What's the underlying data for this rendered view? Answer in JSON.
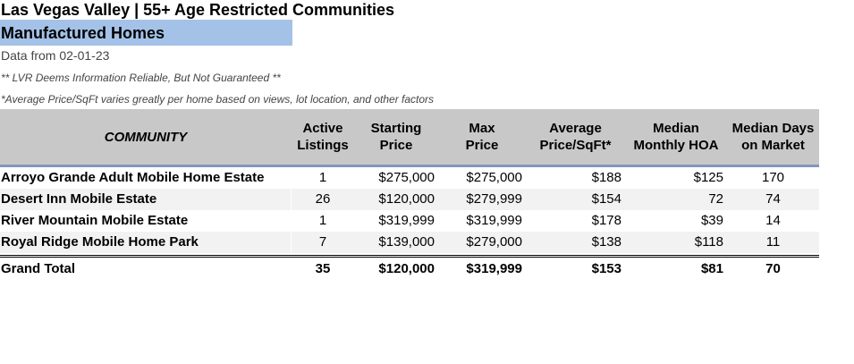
{
  "title": "Las Vegas Valley | 55+ Age Restricted Communities",
  "subtitle": "Manufactured Homes",
  "date_line": "Data from 02-01-23",
  "note1": "** LVR Deems Information Reliable, But Not Guaranteed **",
  "note2": "*Average Price/SqFt varies greatly per home based on views, lot location, and other factors",
  "colors": {
    "header_bg": "#c8c8c8",
    "subtitle_bg": "#a4c2e8",
    "header_rule": "#8297c0",
    "alt_row": "#f2f2f2"
  },
  "table": {
    "headers": {
      "community": "COMMUNITY",
      "active_1": "Active",
      "active_2": "Listings",
      "start_1": "Starting",
      "start_2": "Price",
      "max_1": "Max",
      "max_2": "Price",
      "avg_1": "Average",
      "avg_2": "Price/SqFt*",
      "hoa_1": "Median",
      "hoa_2": "Monthly HOA",
      "days_1": "Median Days",
      "days_2": "on Market"
    },
    "rows": [
      {
        "community": "Arroyo Grande Adult Mobile Home Estate",
        "active": "1",
        "start": "$275,000",
        "max": "$275,000",
        "avg": "$188",
        "hoa": "$125",
        "days": "170"
      },
      {
        "community": "Desert Inn Mobile Estate",
        "active": "26",
        "start": "$120,000",
        "max": "$279,999",
        "avg": "$154",
        "hoa": "72",
        "days": "74"
      },
      {
        "community": "River Mountain Mobile Estate",
        "active": "1",
        "start": "$319,999",
        "max": "$319,999",
        "avg": "$178",
        "hoa": "$39",
        "days": "14"
      },
      {
        "community": "Royal Ridge Mobile Home Park",
        "active": "7",
        "start": "$139,000",
        "max": "$279,000",
        "avg": "$138",
        "hoa": "$118",
        "days": "11"
      }
    ],
    "total": {
      "community": "Grand Total",
      "active": "35",
      "start": "$120,000",
      "max": "$319,999",
      "avg": "$153",
      "hoa": "$81",
      "days": "70"
    }
  }
}
